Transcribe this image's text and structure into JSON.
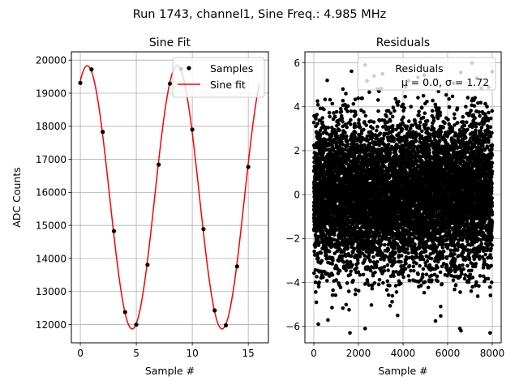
{
  "figure_title": "Run 1743, channel1, Sine Freq.: 4.985 MHz",
  "chart_data": [
    {
      "type": "line",
      "title": "Sine Fit",
      "xlabel": "Sample #",
      "ylabel": "ADC Counts",
      "xlim": [
        -0.8,
        16.8
      ],
      "ylim": [
        11450,
        20250
      ],
      "grid": true,
      "x_ticks": [
        0,
        5,
        10,
        15
      ],
      "y_ticks": [
        12000,
        13000,
        14000,
        15000,
        16000,
        17000,
        18000,
        19000,
        20000
      ],
      "legend_position": "upper-right",
      "series": [
        {
          "name": "Samples",
          "style": "points",
          "color": "#000000",
          "x": [
            0,
            1,
            2,
            3,
            4,
            5,
            6,
            7,
            8,
            9,
            10,
            11,
            12,
            13,
            14,
            15
          ],
          "y": [
            19310,
            19720,
            17830,
            14830,
            12380,
            12000,
            13810,
            16840,
            19290,
            19730,
            17900,
            14890,
            12430,
            11980,
            13760,
            16770
          ]
        },
        {
          "name": "Sine fit",
          "style": "line",
          "color": "#ff0000",
          "model": {
            "offset": 15850,
            "amplitude": 3980,
            "period": 8.025,
            "peak_x": 0.62,
            "x_start": 0,
            "x_end": 16
          }
        }
      ]
    },
    {
      "type": "scatter",
      "title": "Residuals",
      "xlabel": "Sample #",
      "ylabel": "",
      "xlim": [
        -400,
        8400
      ],
      "ylim": [
        -6.75,
        6.5
      ],
      "grid": true,
      "x_ticks": [
        0,
        2000,
        4000,
        6000,
        8000
      ],
      "y_ticks": [
        -6,
        -4,
        -2,
        0,
        2,
        4,
        6
      ],
      "legend_position": "upper-right",
      "legend_title": "Residuals",
      "legend_label": "μ = 0.0, σ = 1.72",
      "series": [
        {
          "name": "Residuals",
          "color": "#000000",
          "n_points": 8000,
          "mean": 0.0,
          "sigma": 1.72,
          "x_range": [
            0,
            8000
          ],
          "notable_points": [
            [
              2300,
              5.9
            ],
            [
              2300,
              -6.1
            ],
            [
              6600,
              -6.2
            ],
            [
              200,
              -5.9
            ],
            [
              8000,
              5.6
            ],
            [
              600,
              5.2
            ],
            [
              2700,
              5.4
            ]
          ]
        }
      ]
    }
  ]
}
